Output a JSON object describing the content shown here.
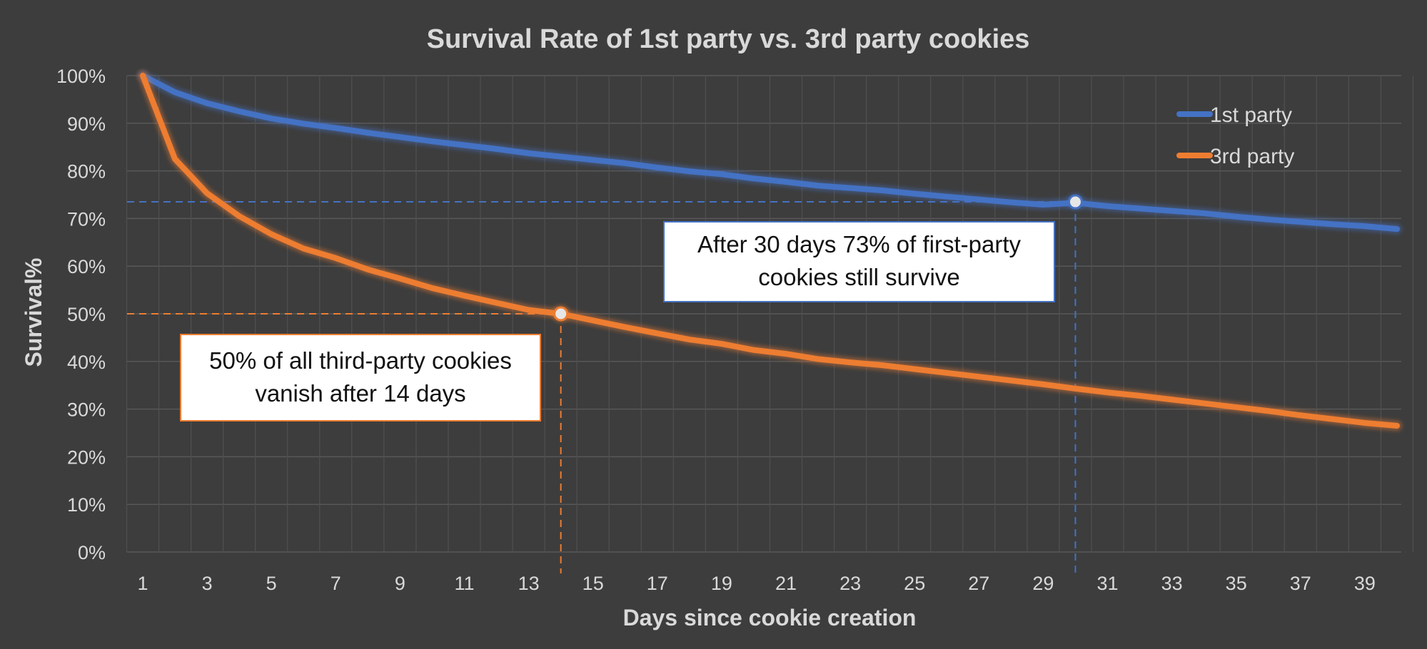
{
  "chart_data": {
    "type": "line",
    "title": "Survival Rate of 1st party vs. 3rd party cookies",
    "xlabel": "Days since cookie creation",
    "ylabel": "Survival%",
    "x": [
      1,
      2,
      3,
      4,
      5,
      6,
      7,
      8,
      9,
      10,
      11,
      12,
      13,
      14,
      15,
      16,
      17,
      18,
      19,
      20,
      21,
      22,
      23,
      24,
      25,
      26,
      27,
      28,
      29,
      30,
      31,
      32,
      33,
      34,
      35,
      36,
      37,
      38,
      39,
      40
    ],
    "x_tick_labels": [
      "1",
      "3",
      "5",
      "7",
      "9",
      "11",
      "13",
      "15",
      "17",
      "19",
      "21",
      "23",
      "25",
      "27",
      "29",
      "31",
      "33",
      "35",
      "37",
      "39"
    ],
    "y_tick_labels": [
      "0%",
      "10%",
      "20%",
      "30%",
      "40%",
      "50%",
      "60%",
      "70%",
      "80%",
      "90%",
      "100%"
    ],
    "ylim": [
      0,
      100
    ],
    "grid": true,
    "legend_position": "top-right",
    "series": [
      {
        "name": "1st party",
        "color": "#4472c4",
        "values": [
          100,
          96.5,
          94.2,
          92.5,
          91,
          89.9,
          89,
          88,
          87.1,
          86.2,
          85.4,
          84.6,
          83.7,
          83,
          82.3,
          81.6,
          80.7,
          79.9,
          79.3,
          78.4,
          77.7,
          76.9,
          76.4,
          75.9,
          75.2,
          74.6,
          74,
          73.4,
          72.9,
          73.3,
          72.6,
          72.1,
          71.6,
          71.1,
          70.4,
          69.8,
          69.3,
          68.8,
          68.4,
          67.8
        ]
      },
      {
        "name": "3rd party",
        "color": "#ed7d31",
        "values": [
          100,
          82.5,
          75.3,
          70.5,
          66.7,
          63.7,
          61.7,
          59.3,
          57.4,
          55.4,
          53.8,
          52.3,
          50.8,
          50,
          48.6,
          47.2,
          45.9,
          44.6,
          43.7,
          42.4,
          41.6,
          40.5,
          39.8,
          39.2,
          38.4,
          37.6,
          36.8,
          36,
          35.2,
          34.3,
          33.5,
          32.8,
          32,
          31.2,
          30.4,
          29.6,
          28.7,
          27.9,
          27.1,
          26.5
        ]
      }
    ],
    "annotations": [
      {
        "series": 0,
        "x": 30,
        "y": 73.5,
        "color": "#4472c4",
        "text": "After 30 days 73% of first-party cookies still survive"
      },
      {
        "series": 1,
        "x": 14,
        "y": 50,
        "color": "#ed7d31",
        "text": "50% of all third-party cookies vanish after 14 days"
      }
    ]
  }
}
